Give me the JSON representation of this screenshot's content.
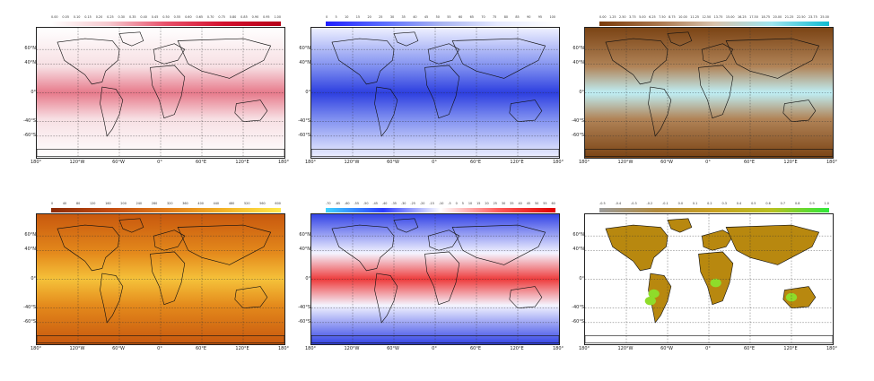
{
  "panels": [
    {
      "id": "p1",
      "colors": [
        "#ffffff",
        "#f6c9cf",
        "#e8506a",
        "#d3112e",
        "#b70018"
      ],
      "map_fill": [
        "#ffffff",
        "#f7dfe3",
        "#e77a8b"
      ],
      "ticks": [
        "0.00",
        "0.05",
        "0.10",
        "0.15",
        "0.20",
        "0.25",
        "0.30",
        "0.35",
        "0.40",
        "0.45",
        "0.50",
        "0.55",
        "0.60",
        "0.65",
        "0.70",
        "0.75",
        "0.80",
        "0.85",
        "0.90",
        "0.95",
        "1.00"
      ],
      "lat_labels": [
        "60°N",
        "40°N",
        "0°",
        "-40°S",
        "-60°S"
      ],
      "lon_labels": [
        "180°",
        "120°W",
        "60°W",
        "0°",
        "60°E",
        "120°E",
        "180°"
      ]
    },
    {
      "id": "p2",
      "colors": [
        "#1f1fff",
        "#5a6cff",
        "#a8b4f2",
        "#e6eaff",
        "#ffffff"
      ],
      "map_fill": [
        "#eef0ff",
        "#7f8ff0",
        "#2d3fe0"
      ],
      "ticks": [
        "0",
        "5",
        "10",
        "15",
        "20",
        "25",
        "30",
        "35",
        "40",
        "45",
        "50",
        "55",
        "60",
        "65",
        "70",
        "75",
        "80",
        "85",
        "90",
        "95",
        "100"
      ],
      "lat_labels": [
        "60°N",
        "40°N",
        "0°",
        "-40°S",
        "-60°S"
      ],
      "lon_labels": [
        "180°",
        "120°W",
        "60°W",
        "0°",
        "60°E",
        "120°E",
        "180°"
      ]
    },
    {
      "id": "p3",
      "colors": [
        "#7a3b0b",
        "#a8744a",
        "#d9c3ad",
        "#9fe6f0",
        "#10bcd3"
      ],
      "map_fill": [
        "#7b4415",
        "#b18458",
        "#bfeff6"
      ],
      "ticks": [
        "0.00",
        "1.25",
        "2.50",
        "3.75",
        "5.00",
        "6.25",
        "7.50",
        "8.75",
        "10.00",
        "11.25",
        "12.50",
        "13.75",
        "15.00",
        "16.25",
        "17.50",
        "18.75",
        "20.00",
        "21.25",
        "22.50",
        "23.75",
        "25.00"
      ],
      "lat_labels": [
        "60°N",
        "40°N",
        "0°",
        "-40°S",
        "-60°S"
      ],
      "lon_labels": [
        "180°",
        "120°W",
        "60°W",
        "0°",
        "60°E",
        "120°E",
        "180°"
      ]
    },
    {
      "id": "p4",
      "colors": [
        "#8c2a05",
        "#c24a10",
        "#e07a18",
        "#f3b226",
        "#ffe84a"
      ],
      "map_fill": [
        "#c8580e",
        "#e48a1c",
        "#f5c23a"
      ],
      "ticks": [
        "0",
        "40",
        "80",
        "120",
        "160",
        "200",
        "240",
        "280",
        "320",
        "360",
        "400",
        "440",
        "480",
        "520",
        "560",
        "600"
      ],
      "lat_labels": [
        "60°N",
        "40°N",
        "0°",
        "-40°S",
        "-60°S"
      ],
      "lon_labels": [
        "180°",
        "120°W",
        "60°W",
        "0°",
        "60°E",
        "120°E",
        "180°"
      ]
    },
    {
      "id": "p5",
      "colors": [
        "#3fd3ff",
        "#2a3cff",
        "#ffffff",
        "#ff5a5a",
        "#e00000"
      ],
      "map_fill": [
        "#3344e6",
        "#f4f4ff",
        "#ee3c3c"
      ],
      "ticks": [
        "-70",
        "-65",
        "-60",
        "-55",
        "-50",
        "-45",
        "-40",
        "-35",
        "-30",
        "-25",
        "-20",
        "-15",
        "-10",
        "-5",
        "0",
        "5",
        "10",
        "15",
        "20",
        "25",
        "30",
        "35",
        "40",
        "45",
        "50",
        "55",
        "60"
      ],
      "lat_labels": [
        "60°N",
        "40°N",
        "0°",
        "-40°S",
        "-60°S"
      ],
      "lon_labels": [
        "180°",
        "120°W",
        "60°W",
        "0°",
        "60°E",
        "120°E",
        "180°"
      ]
    },
    {
      "id": "p6",
      "colors": [
        "#9a9a9a",
        "#b28a3a",
        "#c8a020",
        "#b8c020",
        "#2ee83a"
      ],
      "map_fill": [
        "#ffffff",
        "#b8880f",
        "#8fdc2a"
      ],
      "ticks": [
        "-0.5",
        "-0.4",
        "-0.3",
        "-0.2",
        "-0.1",
        "0.0",
        "0.1",
        "0.2",
        "0.3",
        "0.4",
        "0.5",
        "0.6",
        "0.7",
        "0.8",
        "0.9",
        "1.0"
      ],
      "lat_labels": [
        "60°N",
        "40°N",
        "0°",
        "-40°S",
        "-60°S"
      ],
      "lon_labels": [
        "180°",
        "120°W",
        "60°W",
        "0°",
        "60°E",
        "120°E",
        "180°"
      ]
    }
  ]
}
